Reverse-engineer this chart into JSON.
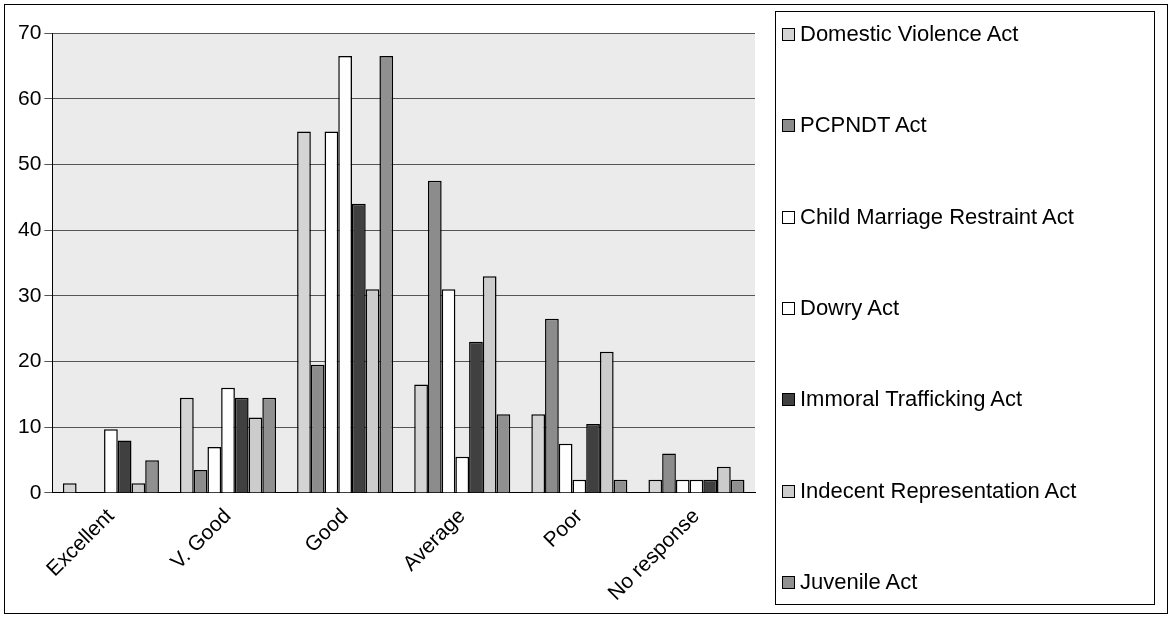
{
  "chart_data": {
    "type": "bar",
    "categories": [
      "Excellent",
      "V. Good",
      "Good",
      "Average",
      "Poor",
      "No response"
    ],
    "series": [
      {
        "name": "Domestic Violence Act",
        "color": "#d4d4d4",
        "values": [
          1.5,
          14.5,
          55,
          16.5,
          12,
          2
        ]
      },
      {
        "name": "PCPNDT Act",
        "color": "#8c8c8c",
        "values": [
          0,
          3.5,
          19.5,
          47.5,
          26.5,
          6
        ]
      },
      {
        "name": "Child Marriage Restraint Act",
        "color": "#ffffff",
        "values": [
          0,
          7,
          55,
          31,
          7.5,
          2
        ]
      },
      {
        "name": "Dowry Act",
        "color": "#ffffff",
        "values": [
          9.7,
          16,
          66.5,
          5.5,
          2,
          2
        ]
      },
      {
        "name": "Immoral Trafficking Act",
        "color": "#404040",
        "values": [
          8,
          14.5,
          44,
          23,
          10.5,
          2
        ]
      },
      {
        "name": "Indecent Representation Act",
        "color": "#cccccc",
        "values": [
          1.5,
          11.5,
          31,
          33,
          21.5,
          4
        ]
      },
      {
        "name": "Juvenile Act",
        "color": "#909090",
        "values": [
          5,
          14.5,
          66.5,
          12,
          2,
          2
        ]
      }
    ],
    "ylim": [
      0,
      70
    ],
    "yticks": [
      0,
      10,
      20,
      30,
      40,
      50,
      60,
      70
    ],
    "grid": "y",
    "legend": "right"
  }
}
